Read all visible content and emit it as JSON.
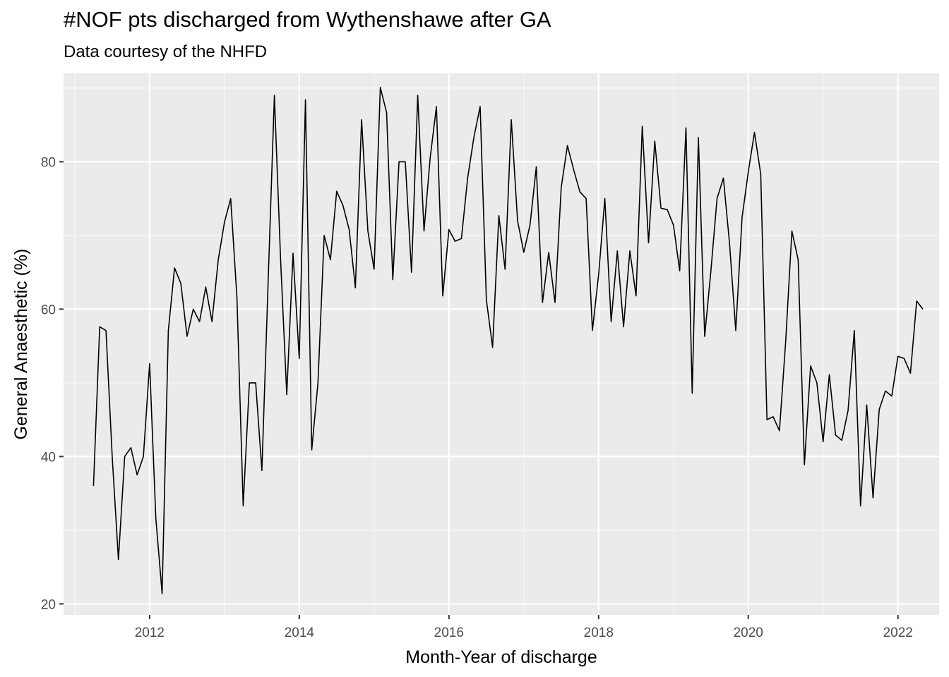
{
  "chart_data": {
    "type": "line",
    "title": "#NOF pts discharged from Wythenshawe after GA",
    "subtitle": "Data courtesy of the NHFD",
    "xlabel": "Month-Year of discharge",
    "ylabel": "General Anaesthetic (%)",
    "xlim": [
      2010.85,
      2022.55
    ],
    "ylim": [
      18.5,
      92.0
    ],
    "x_ticks": [
      2012,
      2014,
      2016,
      2018,
      2020,
      2022
    ],
    "x_tick_labels": [
      "2012",
      "2014",
      "2016",
      "2018",
      "2020",
      "2022"
    ],
    "y_ticks": [
      20,
      40,
      60,
      80
    ],
    "y_tick_labels": [
      "20",
      "40",
      "60",
      "80"
    ],
    "grid": true,
    "line_color": "#000000",
    "background": "#ebebeb",
    "series": [
      {
        "x": [
          2011.25,
          2011.333,
          2011.417,
          2011.5,
          2011.583,
          2011.667,
          2011.75,
          2011.833,
          2011.917,
          2012.0,
          2012.083,
          2012.167,
          2012.25,
          2012.333,
          2012.417,
          2012.5,
          2012.583,
          2012.667,
          2012.75,
          2012.833,
          2012.917,
          2013.0,
          2013.083,
          2013.167,
          2013.25,
          2013.333,
          2013.417,
          2013.5,
          2013.583,
          2013.667,
          2013.75,
          2013.833,
          2013.917,
          2014.0,
          2014.083,
          2014.167,
          2014.25,
          2014.333,
          2014.417,
          2014.5,
          2014.583,
          2014.667,
          2014.75,
          2014.833,
          2014.917,
          2015.0,
          2015.083,
          2015.167,
          2015.25,
          2015.333,
          2015.417,
          2015.5,
          2015.583,
          2015.667,
          2015.75,
          2015.833,
          2015.917,
          2016.0,
          2016.083,
          2016.167,
          2016.25,
          2016.333,
          2016.417,
          2016.5,
          2016.583,
          2016.667,
          2016.75,
          2016.833,
          2016.917,
          2017.0,
          2017.083,
          2017.167,
          2017.25,
          2017.333,
          2017.417,
          2017.5,
          2017.583,
          2017.667,
          2017.75,
          2017.833,
          2017.917,
          2018.0,
          2018.083,
          2018.167,
          2018.25,
          2018.333,
          2018.417,
          2018.5,
          2018.583,
          2018.667,
          2018.75,
          2018.833,
          2018.917,
          2019.0,
          2019.083,
          2019.167,
          2019.25,
          2019.333,
          2019.417,
          2019.5,
          2019.583,
          2019.667,
          2019.75,
          2019.833,
          2019.917,
          2020.0,
          2020.083,
          2020.167,
          2020.25,
          2020.333,
          2020.417,
          2020.5,
          2020.583,
          2020.667,
          2020.75,
          2020.833,
          2020.917,
          2021.0,
          2021.083,
          2021.167,
          2021.25,
          2021.333,
          2021.417,
          2021.5,
          2021.583,
          2021.667,
          2021.75,
          2021.833,
          2021.917,
          2022.0,
          2022.083,
          2022.167,
          2022.25,
          2022.333
        ],
        "y": [
          36.0,
          57.6,
          57.1,
          40.0,
          26.0,
          40.0,
          41.2,
          37.5,
          40.0,
          52.6,
          31.6,
          21.4,
          57.1,
          65.6,
          63.5,
          56.3,
          60.0,
          58.3,
          63.0,
          58.3,
          66.7,
          71.8,
          75.0,
          61.5,
          33.3,
          50.0,
          50.0,
          38.1,
          63.6,
          89.0,
          66.7,
          48.4,
          67.6,
          53.3,
          88.4,
          40.9,
          50.0,
          70.0,
          66.7,
          76.0,
          74.1,
          70.8,
          62.9,
          85.7,
          70.6,
          65.4,
          90.1,
          86.7,
          64.0,
          80.0,
          80.0,
          65.0,
          89.0,
          70.6,
          80.6,
          87.5,
          61.8,
          70.8,
          69.2,
          69.6,
          77.8,
          83.3,
          87.5,
          61.3,
          54.8,
          72.7,
          65.4,
          85.7,
          72.0,
          67.7,
          71.4,
          79.3,
          60.9,
          67.7,
          60.9,
          76.5,
          82.2,
          78.9,
          75.9,
          75.0,
          57.1,
          64.7,
          75.0,
          58.3,
          67.9,
          57.6,
          67.9,
          61.8,
          84.8,
          69.0,
          82.8,
          73.7,
          73.5,
          71.4,
          65.2,
          84.6,
          48.6,
          83.3,
          56.3,
          65.2,
          75.0,
          77.8,
          68.9,
          57.1,
          72.4,
          78.6,
          84.0,
          78.3,
          45.0,
          45.4,
          43.5,
          55.6,
          70.6,
          66.7,
          38.9,
          52.3,
          50.0,
          42.0,
          51.1,
          42.9,
          42.2,
          46.2,
          57.1,
          33.3,
          47.0,
          34.4,
          46.4,
          48.9,
          48.2,
          53.6,
          53.3,
          51.3,
          61.1,
          60.0
        ]
      }
    ]
  }
}
